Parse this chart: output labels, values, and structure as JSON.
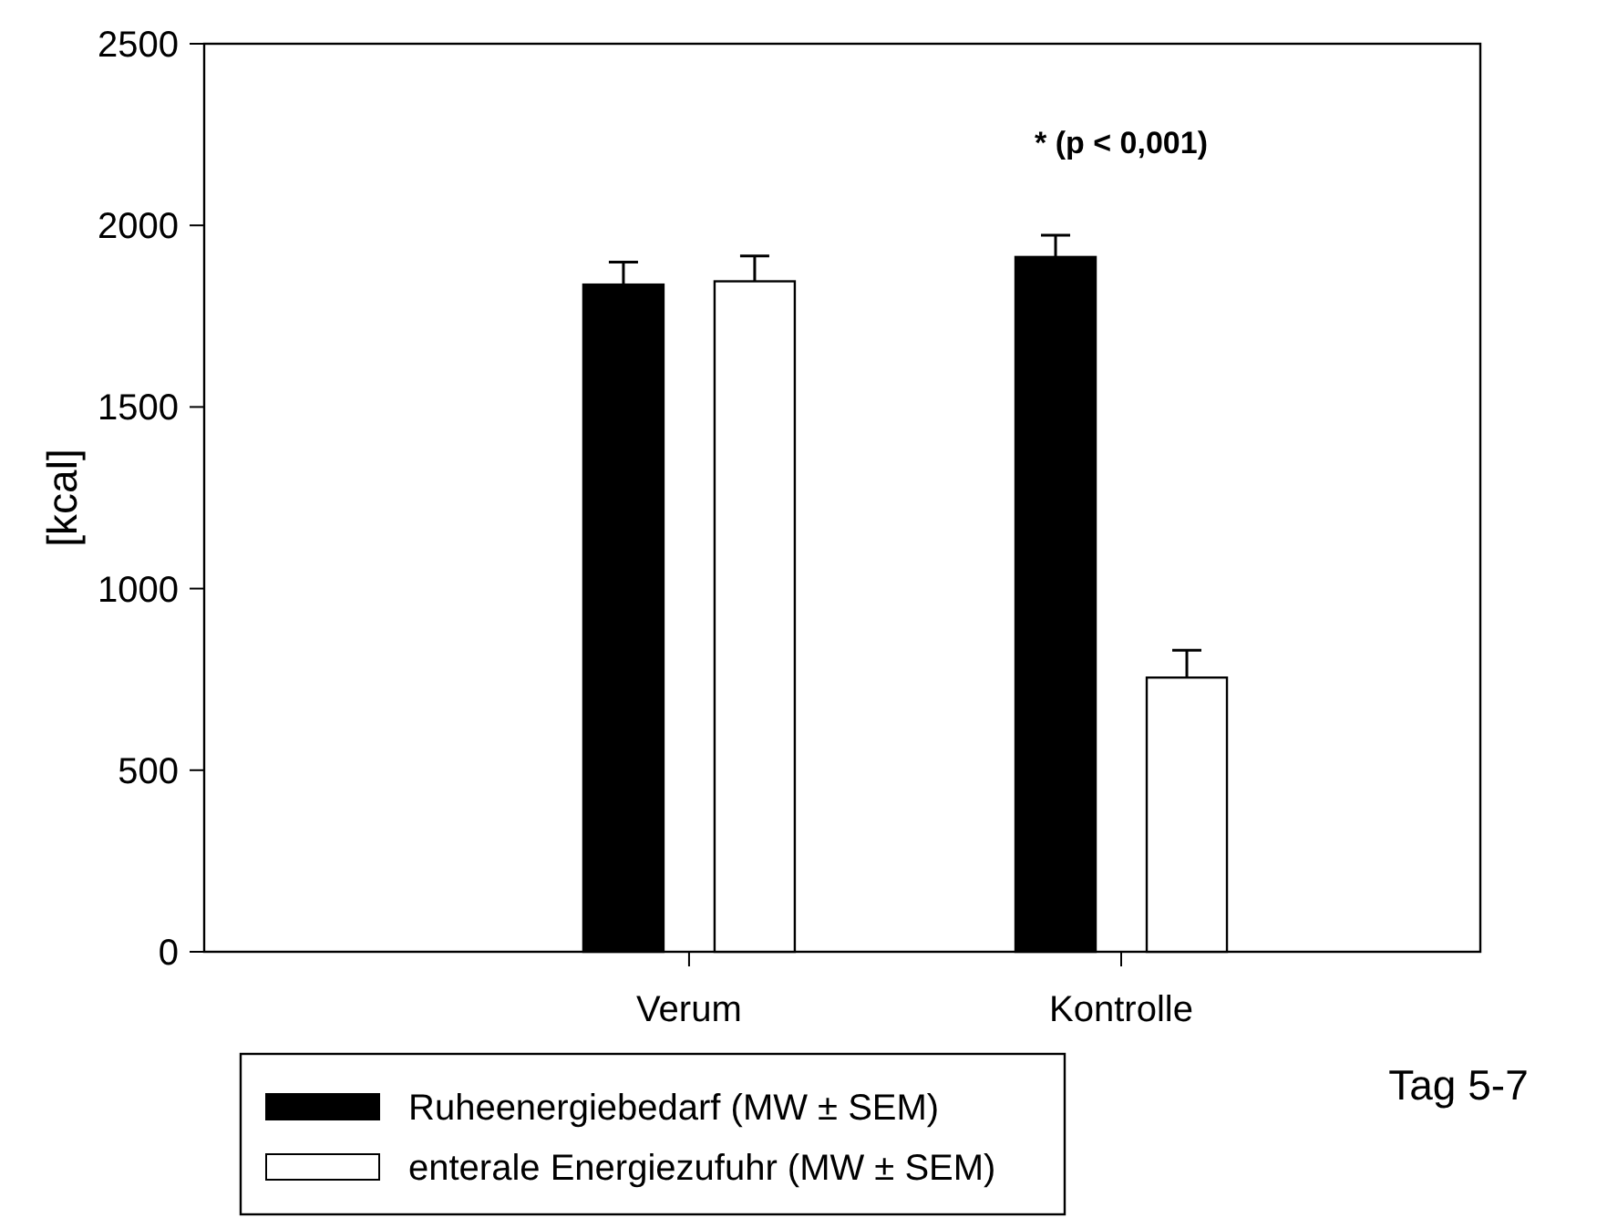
{
  "chart_data": {
    "type": "bar",
    "ylabel": "[kcal]",
    "xlabel": "Tag 5-7",
    "categories": [
      "Verum",
      "Kontrolle"
    ],
    "series": [
      {
        "name": "Ruheenergiebedarf (MW ± SEM)",
        "color": "#000000",
        "values": [
          1837,
          1913
        ],
        "errors": [
          [
            1837,
            1899
          ],
          [
            1913,
            1973
          ]
        ]
      },
      {
        "name": "enterale Energiezufuhr (MW ± SEM)",
        "color": "#ffffff",
        "values": [
          1846,
          755
        ],
        "errors": [
          [
            1846,
            1916
          ],
          [
            755,
            830
          ]
        ]
      }
    ],
    "annotations": [
      "* (p < 0,001)"
    ],
    "ylim": [
      0,
      2500
    ],
    "yticks": [
      0,
      500,
      1000,
      1500,
      2000,
      2500
    ],
    "legend": "bottom"
  }
}
